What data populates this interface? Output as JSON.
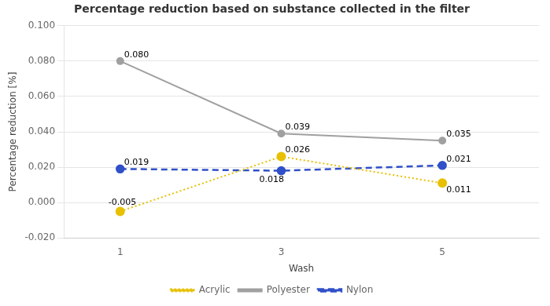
{
  "chart_data": {
    "type": "line",
    "title": "Percentage reduction based on substance collected in the filter",
    "xlabel": "Wash",
    "ylabel": "Percentage reduction [%]",
    "x": [
      1,
      3,
      5
    ],
    "series": [
      {
        "name": "Acrylic",
        "color": "#E8C000",
        "marker": "circle",
        "line_style": "dotted",
        "values": [
          -0.005,
          0.026,
          0.011
        ],
        "value_labels": [
          "-0.005",
          "0.026",
          "0.011"
        ]
      },
      {
        "name": "Polyester",
        "color": "#A0A0A0",
        "marker": "circle",
        "line_style": "solid",
        "values": [
          0.08,
          0.039,
          0.035
        ],
        "value_labels": [
          "0.080",
          "0.039",
          "0.035"
        ]
      },
      {
        "name": "Nylon",
        "color": "#3050C8",
        "marker": "circle",
        "line_style": "dashed",
        "values": [
          0.019,
          0.018,
          0.021
        ],
        "value_labels": [
          "0.019",
          "0.018",
          "0.021"
        ]
      }
    ],
    "xlim": [
      0.3,
      6.2
    ],
    "xticks": [
      1,
      3,
      5
    ],
    "ylim": [
      -0.02,
      0.1
    ],
    "yticks": [
      {
        "value": -0.02,
        "label": "-0.020"
      },
      {
        "value": 0,
        "label": "0.000"
      },
      {
        "value": 0.02,
        "label": "0.020"
      },
      {
        "value": 0.04,
        "label": "0.040"
      },
      {
        "value": 0.06,
        "label": "0.060"
      },
      {
        "value": 0.08,
        "label": "0.080"
      },
      {
        "value": 0.1,
        "label": "0.100"
      }
    ],
    "grid": "y",
    "legend": "bottom",
    "data_labels": true
  }
}
